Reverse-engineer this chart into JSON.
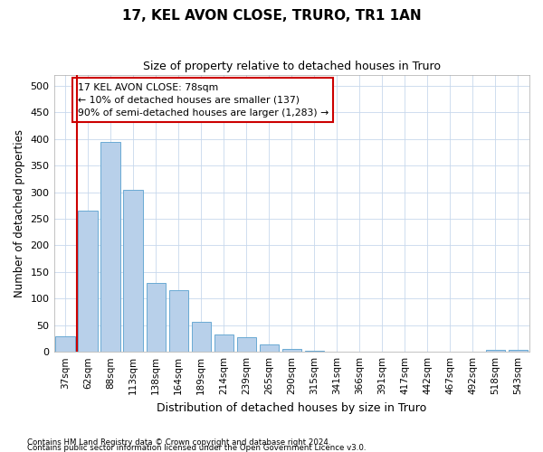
{
  "title": "17, KEL AVON CLOSE, TRURO, TR1 1AN",
  "subtitle": "Size of property relative to detached houses in Truro",
  "xlabel": "Distribution of detached houses by size in Truro",
  "ylabel": "Number of detached properties",
  "footnote1": "Contains HM Land Registry data © Crown copyright and database right 2024.",
  "footnote2": "Contains public sector information licensed under the Open Government Licence v3.0.",
  "bar_labels": [
    "37sqm",
    "62sqm",
    "88sqm",
    "113sqm",
    "138sqm",
    "164sqm",
    "189sqm",
    "214sqm",
    "239sqm",
    "265sqm",
    "290sqm",
    "315sqm",
    "341sqm",
    "366sqm",
    "391sqm",
    "417sqm",
    "442sqm",
    "467sqm",
    "492sqm",
    "518sqm",
    "543sqm"
  ],
  "bar_values": [
    30,
    265,
    395,
    305,
    130,
    115,
    57,
    32,
    27,
    14,
    6,
    2,
    1,
    1,
    0,
    0,
    0,
    0,
    0,
    4,
    4
  ],
  "bar_color": "#b8d0ea",
  "bar_edge_color": "#6aaad4",
  "vline_x": 0.5,
  "vline_color": "#cc0000",
  "annotation_text": "17 KEL AVON CLOSE: 78sqm\n← 10% of detached houses are smaller (137)\n90% of semi-detached houses are larger (1,283) →",
  "annotation_box_color": "#ffffff",
  "annotation_box_edge_color": "#cc0000",
  "ylim": [
    0,
    520
  ],
  "yticks": [
    0,
    50,
    100,
    150,
    200,
    250,
    300,
    350,
    400,
    450,
    500
  ],
  "bg_color": "#ffffff",
  "grid_color": "#c8d8ec"
}
